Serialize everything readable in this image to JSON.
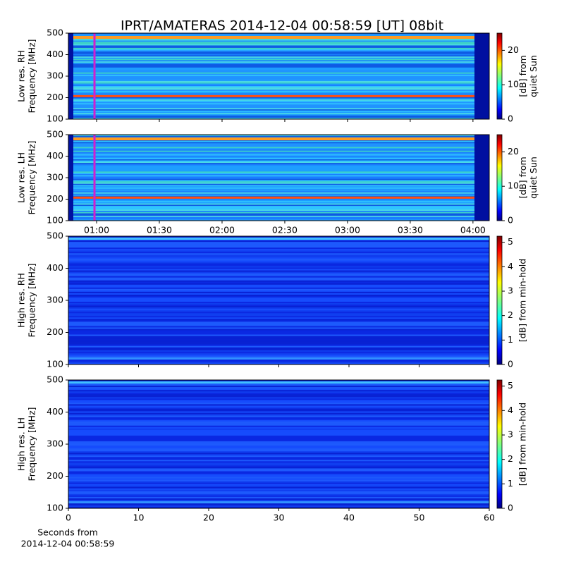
{
  "title": "IPRT/AMATERAS 2014-12-04 00:58:59 [UT]   08bit",
  "xlabel": [
    "Seconds from",
    "2014-12-04 00:58:59"
  ],
  "chart_data": [
    {
      "type": "spectrogram",
      "ylabel": [
        "Low res. RH",
        "Frequency [MHz]"
      ],
      "xlim": [
        46.5,
        247.8
      ],
      "highlight_x": 58.98,
      "highlight_color": "#d020d0",
      "ylim": [
        100,
        500
      ],
      "yticks": [
        100,
        200,
        300,
        400,
        500
      ],
      "colorbar": {
        "label": [
          "[dB] from",
          "quiet Sun"
        ],
        "lim": [
          0,
          25
        ],
        "ticks": [
          0,
          10,
          20
        ]
      }
    },
    {
      "type": "spectrogram",
      "ylabel": [
        "Low res. LH",
        "Frequency [MHz]"
      ],
      "xlim": [
        46.5,
        247.8
      ],
      "highlight_x": 58.98,
      "highlight_color": "#d020d0",
      "xticks": [
        {
          "value": 60,
          "label": "01:00"
        },
        {
          "value": 90,
          "label": "01:30"
        },
        {
          "value": 120,
          "label": "02:00"
        },
        {
          "value": 150,
          "label": "02:30"
        },
        {
          "value": 180,
          "label": "03:00"
        },
        {
          "value": 210,
          "label": "03:30"
        },
        {
          "value": 240,
          "label": "04:00"
        }
      ],
      "ylim": [
        100,
        500
      ],
      "yticks": [
        100,
        200,
        300,
        400,
        500
      ],
      "colorbar": {
        "label": [
          "[dB] from",
          "quiet Sun"
        ],
        "lim": [
          0,
          25
        ],
        "ticks": [
          0,
          10,
          20
        ]
      }
    },
    {
      "type": "spectrogram",
      "ylabel": [
        "High res. RH",
        "Frequency [MHz]"
      ],
      "xlim": [
        0,
        60
      ],
      "ylim": [
        100,
        500
      ],
      "yticks": [
        100,
        200,
        300,
        400,
        500
      ],
      "colorbar": {
        "label": [
          "[dB] from min-hold"
        ],
        "lim": [
          0,
          5.25
        ],
        "ticks": [
          0,
          1,
          2,
          3,
          4,
          5
        ]
      }
    },
    {
      "type": "spectrogram",
      "ylabel": [
        "High res. LH",
        "Frequency [MHz]"
      ],
      "xlim": [
        0,
        60
      ],
      "xticks": [
        0,
        10,
        20,
        30,
        40,
        50,
        60
      ],
      "ylim": [
        100,
        500
      ],
      "yticks": [
        100,
        200,
        300,
        400,
        500
      ],
      "colorbar": {
        "label": [
          "[dB] from min-hold"
        ],
        "lim": [
          0,
          5.25
        ],
        "ticks": [
          0,
          1,
          2,
          3,
          4,
          5
        ]
      }
    }
  ]
}
